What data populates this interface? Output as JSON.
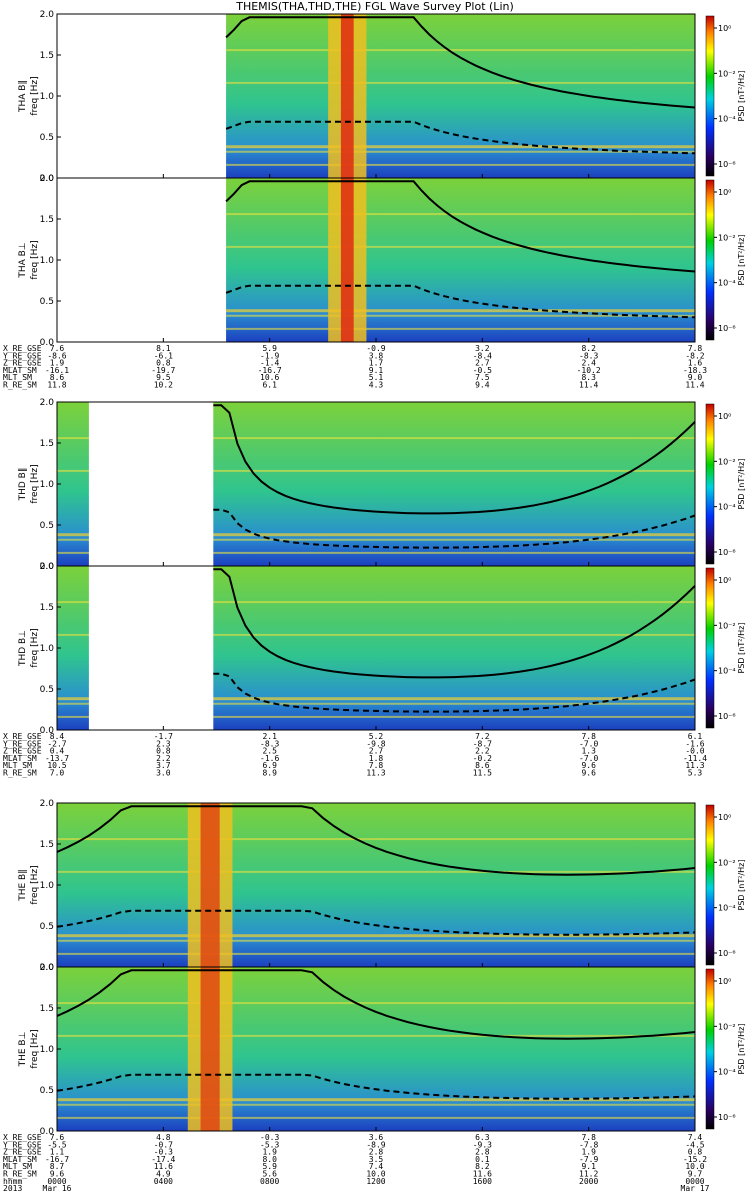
{
  "title": "THEMIS(THA,THD,THE) FGL Wave Survey Plot (Lin)",
  "colorbar": {
    "label": "PSD [nT²/Hz]",
    "ticks": [
      "10⁰",
      "10⁻²",
      "10⁻⁴",
      "10⁻⁶"
    ]
  },
  "chart_data": {
    "type": "heatmap",
    "x_axis": {
      "format": "hhmm",
      "tick_labels": [
        "0000",
        "0400",
        "0800",
        "1200",
        "1600",
        "2000",
        "0000"
      ],
      "date_labels": [
        "Mar 16",
        "Mar 17"
      ],
      "year": "2013"
    },
    "y_axis": {
      "ylim": [
        0,
        2.0
      ],
      "ticks": [
        "0.0",
        "0.5",
        "1.0",
        "1.5",
        "2.0"
      ],
      "unit": "Hz"
    },
    "colors": {
      "low": "#000080",
      "mid": "#00d000",
      "high": "#d40000",
      "lines": "#000000"
    },
    "groups": [
      {
        "spacecraft": "THA",
        "panels": [
          {
            "ylabel": "THA B‖",
            "yunit": "freq [Hz]",
            "data_start": 0.265,
            "data_end": 1.0
          },
          {
            "ylabel": "THA B⊥",
            "yunit": "freq [Hz]",
            "data_start": 0.265,
            "data_end": 1.0
          }
        ],
        "ephemeris": {
          "labels": [
            "X_RE_GSE",
            "Y_RE_GSE",
            "Z_RE_GSE",
            "MLAT_SM",
            "MLT_SM",
            "R_RE_SM"
          ],
          "columns": [
            [
              "7.6",
              "-8.6",
              "1.9",
              "-16.1",
              "8.6",
              "11.8"
            ],
            [
              "8.1",
              "-6.1",
              "0.8",
              "-19.7",
              "9.5",
              "10.2"
            ],
            [
              "5.9",
              "-1.9",
              "-1.4",
              "-16.7",
              "10.6",
              "6.1"
            ],
            [
              "-0.9",
              "3.8",
              "1.7",
              "9.1",
              "5.1",
              "4.3"
            ],
            [
              "3.2",
              "-8.4",
              "2.7",
              "-0.5",
              "7.5",
              "9.4"
            ],
            [
              "8.2",
              "-8.3",
              "2.4",
              "-10.2",
              "8.3",
              "11.4"
            ],
            [
              "7.8",
              "-8.2",
              "1.6",
              "-18.3",
              "9.0",
              "11.4"
            ]
          ]
        }
      },
      {
        "spacecraft": "THD",
        "panels": [
          {
            "ylabel": "THD B‖",
            "yunit": "freq [Hz]",
            "data_start": 0.0,
            "data_end": 1.0
          },
          {
            "ylabel": "THD B⊥",
            "yunit": "freq [Hz]",
            "data_start": 0.0,
            "data_end": 1.0
          }
        ],
        "ephemeris": {
          "labels": [
            "X_RE_GSE",
            "Y_RE_GSE",
            "Z_RE_GSE",
            "MLAT_SM",
            "MLT_SM",
            "R_RE_SM"
          ],
          "columns": [
            [
              "8.4",
              "-2.7",
              "0.4",
              "-13.7",
              "10.5",
              "7.0"
            ],
            [
              "-1.7",
              "2.3",
              "0.8",
              "2.2",
              "3.7",
              "3.0"
            ],
            [
              "2.1",
              "-8.3",
              "2.5",
              "-1.6",
              "6.9",
              "8.9"
            ],
            [
              "5.2",
              "-9.8",
              "2.7",
              "1.8",
              "7.8",
              "11.3"
            ],
            [
              "7.2",
              "-8.7",
              "2.2",
              "-0.2",
              "8.6",
              "11.5"
            ],
            [
              "7.8",
              "-7.0",
              "1.3",
              "-7.0",
              "9.6",
              "9.6"
            ],
            [
              "6.1",
              "-1.6",
              "-0.0",
              "-11.4",
              "11.3",
              "5.3"
            ]
          ]
        }
      },
      {
        "spacecraft": "THE",
        "panels": [
          {
            "ylabel": "THE B‖",
            "yunit": "freq [Hz]",
            "data_start": 0.0,
            "data_end": 1.0
          },
          {
            "ylabel": "THE B⊥",
            "yunit": "freq [Hz]",
            "data_start": 0.0,
            "data_end": 1.0
          }
        ],
        "ephemeris": {
          "labels": [
            "X_RE_GSE",
            "Y_RE_GSE",
            "Z_RE_GSE",
            "MLAT_SM",
            "MLT_SM",
            "R_RE_SM",
            "hhmm",
            "2013"
          ],
          "columns": [
            [
              "7.6",
              "-5.5",
              "1.1",
              "-16.7",
              "8.7",
              "9.6",
              "0000",
              "Mar 16"
            ],
            [
              "4.8",
              "-0.7",
              "-0.3",
              "-17.4",
              "11.6",
              "4.9",
              "0400",
              ""
            ],
            [
              "-0.3",
              "-5.3",
              "1.9",
              "8.0",
              "5.9",
              "5.6",
              "0800",
              ""
            ],
            [
              "3.6",
              "-8.9",
              "2.8",
              "3.5",
              "7.4",
              "10.0",
              "1200",
              ""
            ],
            [
              "6.3",
              "-9.3",
              "2.8",
              "0.1",
              "8.2",
              "11.6",
              "1600",
              ""
            ],
            [
              "7.8",
              "-7.8",
              "1.9",
              "-7.9",
              "9.1",
              "11.2",
              "2000",
              ""
            ],
            [
              "7.4",
              "-4.5",
              "0.8",
              "-15.2",
              "10.0",
              "9.7",
              "0000",
              "Mar 17"
            ]
          ]
        }
      }
    ]
  }
}
